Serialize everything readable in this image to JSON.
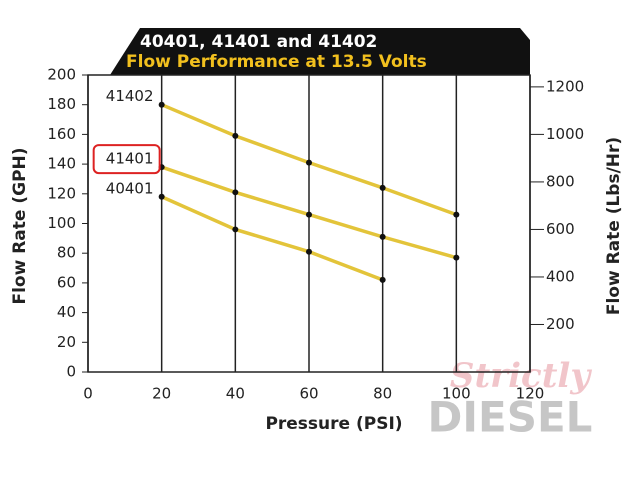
{
  "chart_data": {
    "type": "line",
    "title": "40401, 41401 and 41402",
    "subtitle": "Flow Performance at 13.5 Volts",
    "x_label": "Pressure (PSI)",
    "y_label": "Flow Rate (GPH)",
    "y2_label": "Flow Rate (Lbs/Hr)",
    "watermark": [
      "Strictly",
      "DIESEL"
    ],
    "xlim": [
      0,
      120
    ],
    "xticks": [
      0,
      20,
      40,
      60,
      80,
      100,
      120
    ],
    "ylim": [
      0,
      200
    ],
    "yticks": [
      0,
      20,
      40,
      60,
      80,
      100,
      120,
      140,
      160,
      180,
      200
    ],
    "y2lim": [
      0,
      1250
    ],
    "y2ticks": [
      200,
      400,
      600,
      800,
      1000,
      1200
    ],
    "grid": true,
    "highlight": "41401",
    "series": [
      {
        "name": "41402",
        "color": "#e3c43a",
        "x": [
          20,
          40,
          60,
          80,
          100
        ],
        "values": [
          180,
          159,
          141,
          124,
          106
        ]
      },
      {
        "name": "41401",
        "color": "#e3c43a",
        "x": [
          20,
          40,
          60,
          80,
          100
        ],
        "values": [
          138,
          121,
          106,
          91,
          77
        ]
      },
      {
        "name": "40401",
        "color": "#e3c43a",
        "x": [
          20,
          40,
          60,
          80
        ],
        "values": [
          118,
          96,
          81,
          62
        ]
      }
    ]
  }
}
